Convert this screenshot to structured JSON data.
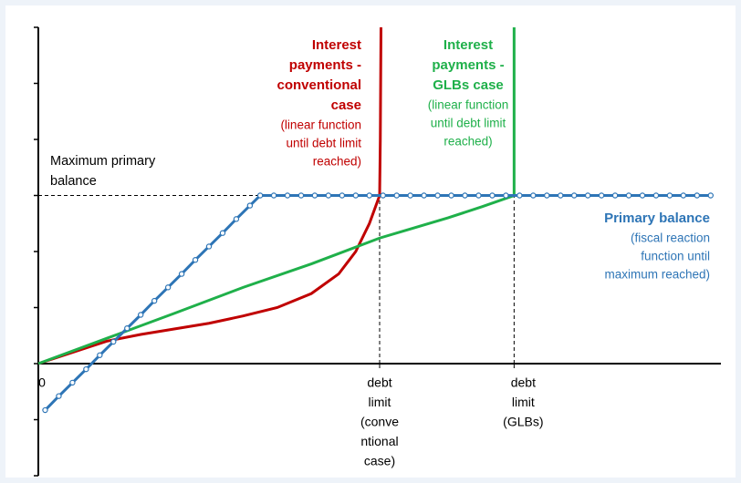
{
  "chart_data": {
    "type": "line",
    "xlim": [
      0,
      100
    ],
    "ylim": [
      -2,
      6
    ],
    "yticks": [
      -2,
      -1,
      0,
      1,
      2,
      3,
      4,
      5,
      6
    ],
    "xticks": [
      {
        "value": 0,
        "label": [
          "0"
        ]
      },
      {
        "value": 50,
        "label": [
          "debt",
          "limit",
          "(conve",
          "ntional",
          "case)"
        ]
      },
      {
        "value": 69.7,
        "label": [
          "debt",
          "limit",
          "(GLBs)"
        ]
      }
    ],
    "series": [
      {
        "color": "#c00000",
        "markers": false,
        "x": [
          0,
          5,
          10,
          15,
          20,
          25,
          30,
          35,
          40,
          44,
          46.5,
          48.5,
          49.7,
          50,
          50.1,
          50.2
        ],
        "values": [
          0,
          0.2,
          0.4,
          0.52,
          0.62,
          0.72,
          0.85,
          1.0,
          1.25,
          1.6,
          2.0,
          2.5,
          2.9,
          3,
          4,
          6
        ]
      },
      {
        "color": "#1fb04a",
        "markers": false,
        "x": [
          0,
          10,
          20,
          30,
          40,
          50,
          60,
          65,
          69.7,
          69.7
        ],
        "values": [
          0,
          0.45,
          0.9,
          1.36,
          1.78,
          2.24,
          2.6,
          2.8,
          3,
          6
        ]
      },
      {
        "color": "#2e75b6",
        "markers": true,
        "x": [
          1,
          3,
          5,
          7,
          9,
          11,
          13,
          15,
          17,
          19,
          21,
          23,
          25,
          27,
          29,
          31,
          32.5,
          34.5,
          36.5,
          38.5,
          40.5,
          42.5,
          44.5,
          46.5,
          48.5,
          50.5,
          52.5,
          54.5,
          56.5,
          58.5,
          60.5,
          62.5,
          64.5,
          66.5,
          68.5,
          70.5,
          72.5,
          74.5,
          76.5,
          78.5,
          80.5,
          82.5,
          84.5,
          86.5,
          88.5,
          90.5,
          92.5,
          94.5,
          96.5,
          98.5
        ],
        "values": [
          -0.83,
          -0.58,
          -0.34,
          -0.1,
          0.15,
          0.39,
          0.63,
          0.87,
          1.12,
          1.36,
          1.6,
          1.85,
          2.09,
          2.33,
          2.58,
          2.82,
          3,
          3,
          3,
          3,
          3,
          3,
          3,
          3,
          3,
          3,
          3,
          3,
          3,
          3,
          3,
          3,
          3,
          3,
          3,
          3,
          3,
          3,
          3,
          3,
          3,
          3,
          3,
          3,
          3,
          3,
          3,
          3,
          3,
          3
        ]
      }
    ],
    "dashed_lines": [
      {
        "x": [
          0,
          50
        ],
        "values": [
          3,
          3
        ]
      },
      {
        "x": [
          50,
          50
        ],
        "values": [
          0,
          3
        ]
      },
      {
        "x": [
          69.7,
          69.7
        ],
        "values": [
          0,
          3
        ]
      }
    ],
    "annotations": [
      {
        "color": "#c00000",
        "bold": [
          "Interest",
          "payments -",
          "conventional",
          "case"
        ],
        "lines": [
          "(linear function",
          "until debt limit",
          "reached)"
        ]
      },
      {
        "color": "#1fb04a",
        "bold": [
          "Interest",
          "payments -",
          "GLBs case"
        ],
        "lines": [
          "(linear function",
          "until debt limit",
          "reached)"
        ]
      },
      {
        "color": "#2e75b6",
        "bold": [
          "Primary balance"
        ],
        "lines": [
          "(fiscal reaction",
          "function until",
          "maximum reached)"
        ]
      },
      {
        "color": "#000000",
        "bold": [],
        "lines": [
          "Maximum primary",
          "balance"
        ]
      }
    ]
  }
}
